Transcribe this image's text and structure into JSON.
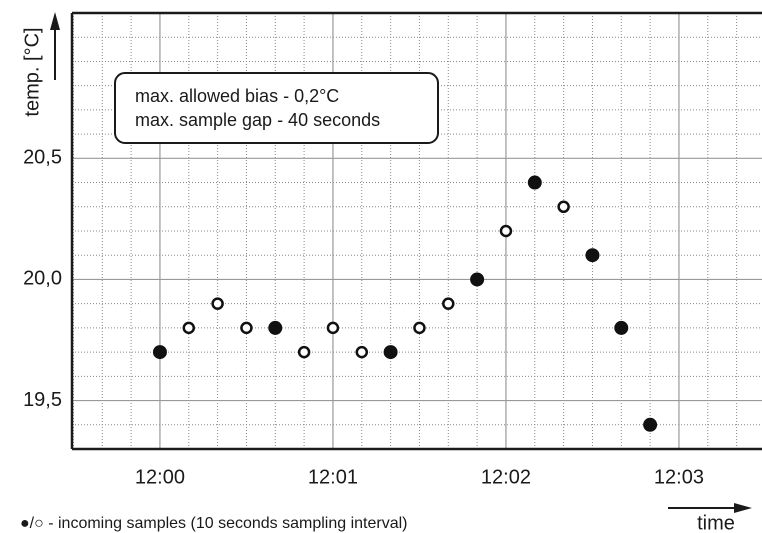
{
  "chart_data": {
    "type": "scatter",
    "y_label": "temp. [°C]",
    "x_label": "time",
    "annotation_lines": [
      "max. allowed bias - 0,2°C",
      "max. sample gap - 40 seconds"
    ],
    "footnote": "●/○ - incoming samples (10 seconds sampling interval)",
    "x": [
      0,
      10,
      20,
      30,
      40,
      50,
      60,
      70,
      80,
      90,
      100,
      110,
      120,
      130,
      140,
      150,
      160,
      170
    ],
    "values": [
      19.7,
      19.8,
      19.9,
      19.8,
      19.8,
      19.7,
      19.8,
      19.7,
      19.7,
      19.8,
      19.9,
      20.0,
      20.2,
      20.4,
      20.3,
      20.1,
      19.8,
      19.4
    ],
    "marker_filled": [
      true,
      false,
      false,
      false,
      true,
      false,
      false,
      false,
      true,
      false,
      false,
      true,
      false,
      true,
      false,
      true,
      true,
      true
    ],
    "color": "#111111",
    "xlim": [
      -30.5,
      208.8
    ],
    "ylim": [
      19.3,
      21.1
    ],
    "xticks": [
      {
        "value": 0,
        "label": "12:00"
      },
      {
        "value": 60,
        "label": "12:01"
      },
      {
        "value": 120,
        "label": "12:02"
      },
      {
        "value": 180,
        "label": "12:03"
      }
    ],
    "yticks": [
      {
        "value": 19.5,
        "label": "19,5"
      },
      {
        "value": 20.0,
        "label": "20,0"
      },
      {
        "value": 20.5,
        "label": "20,5"
      }
    ],
    "minor_xticks": [
      -30,
      -20,
      -10,
      10,
      20,
      30,
      40,
      50,
      70,
      80,
      90,
      100,
      110,
      130,
      140,
      150,
      160,
      170,
      190,
      200
    ],
    "minor_yticks": [
      19.3,
      19.4,
      19.6,
      19.7,
      19.8,
      19.9,
      20.1,
      20.2,
      20.3,
      20.4,
      20.6,
      20.7,
      20.8,
      20.9,
      21.0
    ],
    "grid": true
  }
}
